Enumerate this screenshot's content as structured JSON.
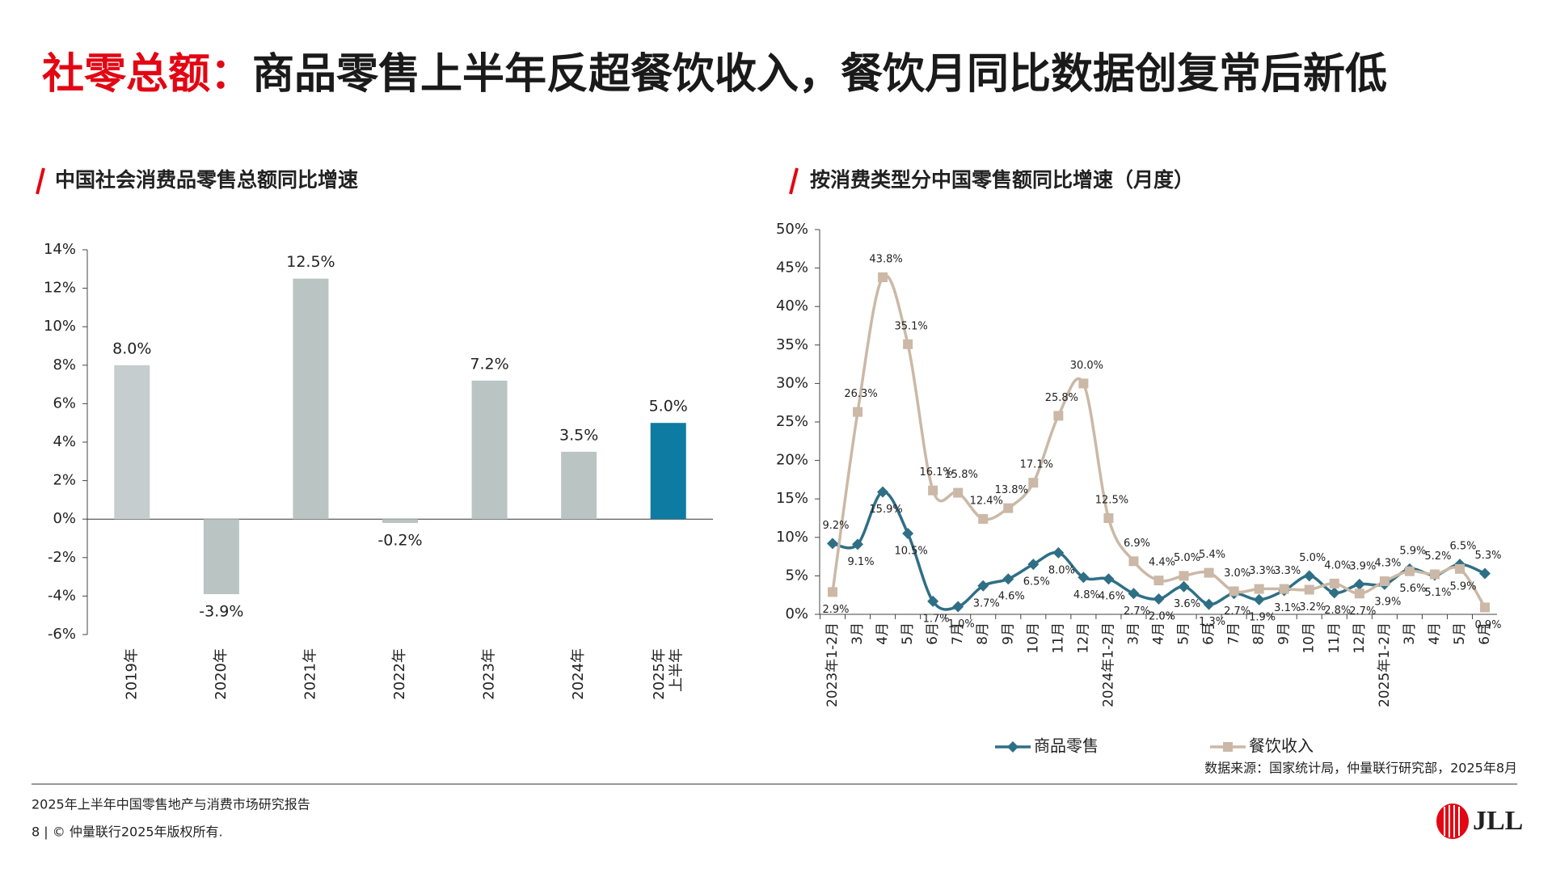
{
  "header": {
    "title_highlight": "社零总额：",
    "title": "商品零售上半年反超餐饮收入，餐饮月同比数据创复常后新低"
  },
  "chart_data": [
    {
      "type": "bar",
      "title": "中国社会消费品零售总额同比增速",
      "categories": [
        "2019年",
        "2020年",
        "2021年",
        "2022年",
        "2023年",
        "2024年",
        "2025年\n上半年"
      ],
      "values": [
        8.0,
        -3.9,
        12.5,
        -0.2,
        7.2,
        3.5,
        5.0
      ],
      "value_labels": [
        "8.0%",
        "-3.9%",
        "12.5%",
        "-0.2%",
        "7.2%",
        "3.5%",
        "5.0%"
      ],
      "colors": [
        "#c6cdcf",
        "#bac5c3",
        "#bac5c3",
        "#bac5c3",
        "#bac5c3",
        "#bac5c3",
        "#0e7ba3"
      ],
      "ylim": [
        -6,
        14
      ],
      "yticks": [
        {
          "value": -6,
          "label": "-6%"
        },
        {
          "value": -4,
          "label": "-4%"
        },
        {
          "value": -2,
          "label": "-2%"
        },
        {
          "value": 0,
          "label": "0%"
        },
        {
          "value": 2,
          "label": "2%"
        },
        {
          "value": 4,
          "label": "4%"
        },
        {
          "value": 6,
          "label": "6%"
        },
        {
          "value": 8,
          "label": "8%"
        },
        {
          "value": 10,
          "label": "10%"
        },
        {
          "value": 12,
          "label": "12%"
        },
        {
          "value": 14,
          "label": "14%"
        }
      ],
      "grid": false
    },
    {
      "type": "line",
      "title": "按消费类型分中国零售额同比增速（月度）",
      "categories": [
        "2023年1-2月",
        "3月",
        "4月",
        "5月",
        "6月",
        "7月",
        "8月",
        "9月",
        "10月",
        "11月",
        "12月",
        "2024年1-2月",
        "3月",
        "4月",
        "5月",
        "6月",
        "7月",
        "8月",
        "9月",
        "10月",
        "11月",
        "12月",
        "2025年1-2月",
        "3月",
        "4月",
        "5月",
        "6月"
      ],
      "series": [
        {
          "name": "商品零售",
          "color": "#2f6f86",
          "marker": "diamond",
          "values": [
            9.2,
            9.1,
            15.9,
            10.5,
            1.7,
            1.0,
            3.7,
            4.6,
            6.5,
            8.0,
            4.8,
            4.6,
            2.7,
            2.0,
            3.6,
            1.3,
            2.7,
            1.9,
            3.1,
            5.0,
            2.8,
            3.9,
            3.9,
            5.9,
            5.1,
            6.5,
            5.3
          ],
          "value_labels": [
            "9.2%",
            "9.1%",
            "15.9%",
            "10.5%",
            "1.7%",
            "1.0%",
            "3.7%",
            "4.6%",
            "6.5%",
            "8.0%",
            "4.8%",
            "4.6%",
            "2.7%",
            "2.0%",
            "3.6%",
            "1.3%",
            "2.7%",
            "1.9%",
            "3.1%",
            "5.0%",
            "2.8%",
            "3.9%",
            "3.9%",
            "5.9%",
            "5.1%",
            "6.5%",
            "5.3%"
          ]
        },
        {
          "name": "餐饮收入",
          "color": "#cbb8a6",
          "marker": "square",
          "values": [
            2.9,
            26.3,
            43.8,
            35.1,
            16.1,
            15.8,
            12.4,
            13.8,
            17.1,
            25.8,
            30.0,
            12.5,
            6.9,
            4.4,
            5.0,
            5.4,
            3.0,
            3.3,
            3.3,
            3.2,
            4.0,
            2.7,
            4.3,
            5.6,
            5.2,
            5.9,
            0.9
          ],
          "value_labels": [
            "2.9%",
            "26.3%",
            "43.8%",
            "35.1%",
            "16.1%",
            "15.8%",
            "12.4%",
            "13.8%",
            "17.1%",
            "25.8%",
            "30.0%",
            "12.5%",
            "6.9%",
            "4.4%",
            "5.0%",
            "5.4%",
            "3.0%",
            "3.3%",
            "3.3%",
            "3.2%",
            "4.0%",
            "2.7%",
            "4.3%",
            "5.6%",
            "5.2%",
            "5.9%",
            "0.9%"
          ]
        }
      ],
      "ylim": [
        0,
        50
      ],
      "yticks": [
        {
          "value": 0,
          "label": "0%"
        },
        {
          "value": 5,
          "label": "5%"
        },
        {
          "value": 10,
          "label": "10%"
        },
        {
          "value": 15,
          "label": "15%"
        },
        {
          "value": 20,
          "label": "20%"
        },
        {
          "value": 25,
          "label": "25%"
        },
        {
          "value": 30,
          "label": "30%"
        },
        {
          "value": 35,
          "label": "35%"
        },
        {
          "value": 40,
          "label": "40%"
        },
        {
          "value": 45,
          "label": "45%"
        },
        {
          "value": 50,
          "label": "50%"
        }
      ],
      "grid": false,
      "smooth": true,
      "source": "数据来源：国家统计局，仲量联行研究部，2025年8月"
    }
  ],
  "footer": {
    "report": "2025年上半年中国零售地产与消费市场研究报告",
    "copyright": "8 | © 仲量联行2025年版权所有.",
    "logo": "JLL"
  }
}
